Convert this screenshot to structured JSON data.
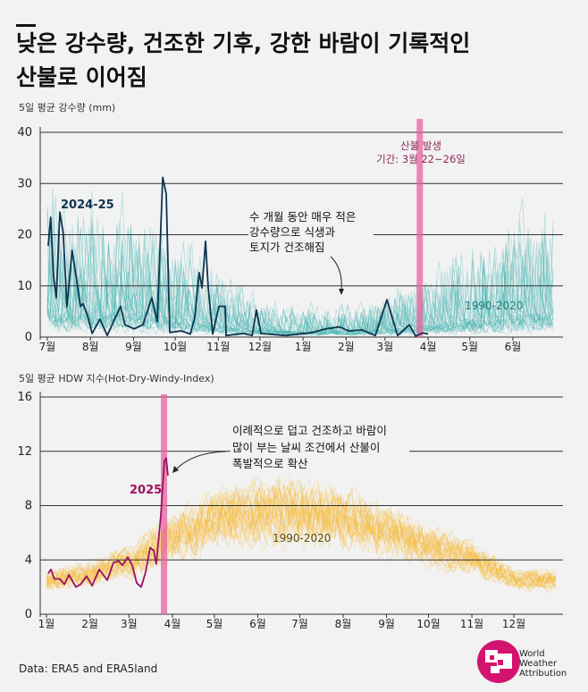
{
  "header": {
    "title_line1": "낮은 강수량, 건조한 기후, 강한 바람이 기록적인",
    "title_line2": "산불로 이어짐"
  },
  "chart_data": [
    {
      "type": "line",
      "title": "5일 평균 강수량 (mm)",
      "ylabel": "5일 평균 강수량 (mm)",
      "ylim": [
        0,
        40
      ],
      "yticks": [
        "0",
        "10",
        "20",
        "30",
        "40"
      ],
      "ytick_values": [
        0,
        10,
        20,
        30,
        40
      ],
      "xlim_days": [
        0,
        365
      ],
      "xticks": [
        "7월",
        "8월",
        "9월",
        "10월",
        "11월",
        "12월",
        "1월",
        "2월",
        "3월",
        "4월",
        "5월",
        "6월"
      ],
      "xtick_days": [
        0,
        31,
        62,
        92,
        123,
        153,
        184,
        215,
        243,
        274,
        304,
        335
      ],
      "grid": true,
      "fire_period_day": 268,
      "fire_label_line1": "산불 발생",
      "fire_label_line2": "기간: 3월 22~26일",
      "annotation_lines": [
        "수 개월 동안 매우 적은",
        "강수량으로 식생과",
        "토지가 건조해짐"
      ],
      "series": [
        {
          "name": "2024-25",
          "color": "#0d3550",
          "x_days": [
            0.6,
            2.4,
            4.5,
            6.4,
            9,
            11.4,
            14.1,
            17.8,
            21.7,
            23.8,
            25.7,
            28.9,
            32.2,
            37.9,
            43.1,
            52.7,
            55.9,
            62.4,
            68.8,
            75.2,
            79.1,
            83,
            85.5,
            88.1,
            96.5,
            102.9,
            106.1,
            109.3,
            111.3,
            113.8,
            115.8,
            119,
            123.5,
            128,
            128.6,
            141.5,
            147.3,
            150.5,
            153.7,
            171.7,
            191,
            200.6,
            210.3,
            216.7,
            226.4,
            236,
            244.4,
            252,
            260.5,
            265,
            270,
            274
          ],
          "values": [
            17.8,
            23.4,
            11.7,
            7.7,
            24.4,
            20.4,
            5.9,
            16.9,
            10,
            6,
            6.5,
            4.2,
            0.7,
            3.5,
            0.3,
            6,
            2.4,
            1.6,
            2.4,
            7.7,
            3,
            31.2,
            28,
            0.9,
            1.2,
            0.6,
            3.8,
            12.6,
            9.6,
            18.7,
            9.4,
            0.6,
            6,
            6,
            0.3,
            0.7,
            0.3,
            5.3,
            0.7,
            0.3,
            0.9,
            1.6,
            2,
            1.2,
            1.4,
            0.3,
            7.3,
            0.3,
            2.4,
            0.2,
            0.8,
            0.6
          ]
        },
        {
          "name": "1990-2020",
          "color": "#3bb3b0",
          "ensemble_size": 30,
          "monthly_mean": [
            9,
            9,
            8,
            6,
            4,
            2.5,
            2,
            2,
            2.5,
            4,
            6,
            7
          ]
        }
      ]
    },
    {
      "type": "line",
      "title": "5일 평균 HDW 지수(Hot-Dry-Windy-Index)",
      "ylabel": "5일 평균 HDW 지수(Hot-Dry-Windy-Index)",
      "ylim": [
        0,
        16
      ],
      "yticks": [
        "0",
        "4",
        "8",
        "12",
        "16"
      ],
      "ytick_values": [
        0,
        4,
        8,
        12,
        16
      ],
      "xlim_days": [
        0,
        365
      ],
      "xticks": [
        "1월",
        "2월",
        "3월",
        "4월",
        "5월",
        "6월",
        "7월",
        "8월",
        "9월",
        "10월",
        "11월",
        "12월"
      ],
      "xtick_days": [
        0,
        31,
        59,
        90,
        120,
        151,
        181,
        212,
        243,
        273,
        304,
        334
      ],
      "grid": true,
      "fire_period_day": 84,
      "annotation_lines": [
        "이례적으로 덥고 건조하고 바람이",
        "많이 부는 날씨 조건에서 산불이",
        "폭발적으로 확산"
      ],
      "series": [
        {
          "name": "2025",
          "color": "#9b1060",
          "x_days": [
            1.3,
            3.2,
            5.7,
            9.6,
            12.8,
            16,
            21,
            24.3,
            28.7,
            32.6,
            37.7,
            43.4,
            47.9,
            51.7,
            54.3,
            58.1,
            61.3,
            64.5,
            67.7,
            70.9,
            74.1,
            76.6,
            78.5,
            81.7,
            84.3,
            85.6,
            86.8
          ],
          "values": [
            3.0,
            3.3,
            2.6,
            2.6,
            2.2,
            2.9,
            2.0,
            2.2,
            2.8,
            2.1,
            3.3,
            2.5,
            3.8,
            3.9,
            3.6,
            4.2,
            3.6,
            2.3,
            2.0,
            3.1,
            4.9,
            4.7,
            3.7,
            7.2,
            11.3,
            11.5,
            10.2
          ]
        },
        {
          "name": "1990-2020",
          "color": "#f5b730",
          "ensemble_size": 30,
          "monthly_mean": [
            2.5,
            3,
            4,
            6,
            7,
            7.5,
            7.5,
            7,
            6,
            5,
            4,
            2.5
          ]
        }
      ]
    }
  ],
  "footer": {
    "source": "Data: ERA5 and ERA5land",
    "logo_line1": "World",
    "logo_line2": "Weather",
    "logo_line3": "Attribution",
    "logo_color": "#d3136f"
  }
}
